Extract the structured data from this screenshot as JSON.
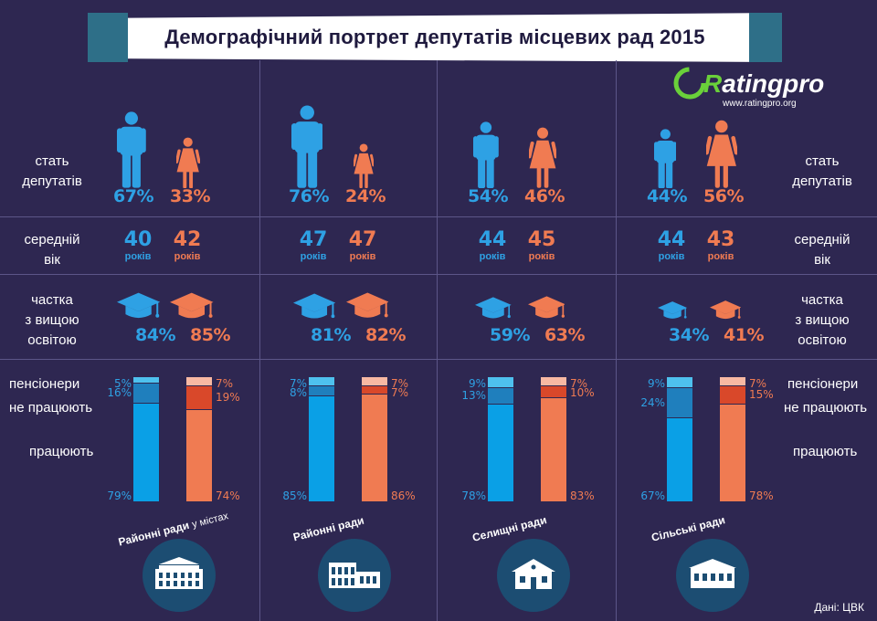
{
  "title": "Демографічний портрет депутатів місцевих рад 2015",
  "logo": {
    "brand_r": "R",
    "brand_rest": "ating",
    "brand_pro": "pro",
    "url": "www.ratingpro.org"
  },
  "row_labels": {
    "gender": "стать депутатів",
    "gender_l1": "стать",
    "gender_l2": "депутатів",
    "age_l1": "середній",
    "age_l2": "вік",
    "edu_l1": "частка",
    "edu_l2": "з вищою",
    "edu_l3": "освітою",
    "pensioners": "пенсіонери",
    "not_working": "не працюють",
    "working": "працюють"
  },
  "age_unit": "років",
  "source": "Дані: ЦВК",
  "colors": {
    "male": "#2ea1e4",
    "female": "#f07b52",
    "background": "#2e2751"
  },
  "chart_data": [
    {
      "type": "table",
      "title": "Районні ради у містах",
      "label_main": "Районні ради",
      "label_sub": "у містах",
      "gender": {
        "male": "67%",
        "female": "33%"
      },
      "age": {
        "male": "40",
        "female": "42"
      },
      "higher_education": {
        "male": "84%",
        "female": "85%"
      },
      "employment": {
        "male": {
          "pensioners": "5%",
          "not_working": "16%",
          "working": "79%"
        },
        "female": {
          "pensioners": "7%",
          "not_working": "19%",
          "working": "74%"
        }
      }
    },
    {
      "type": "table",
      "title": "Районні ради",
      "label_main": "Районні ради",
      "label_sub": "",
      "gender": {
        "male": "76%",
        "female": "24%"
      },
      "age": {
        "male": "47",
        "female": "47"
      },
      "higher_education": {
        "male": "81%",
        "female": "82%"
      },
      "employment": {
        "male": {
          "pensioners": "7%",
          "not_working": "8%",
          "working": "85%"
        },
        "female": {
          "pensioners": "7%",
          "not_working": "7%",
          "working": "86%"
        }
      }
    },
    {
      "type": "table",
      "title": "Селищні ради",
      "label_main": "Селищні ради",
      "label_sub": "",
      "gender": {
        "male": "54%",
        "female": "46%"
      },
      "age": {
        "male": "44",
        "female": "45"
      },
      "higher_education": {
        "male": "59%",
        "female": "63%"
      },
      "employment": {
        "male": {
          "pensioners": "9%",
          "not_working": "13%",
          "working": "78%"
        },
        "female": {
          "pensioners": "7%",
          "not_working": "10%",
          "working": "83%"
        }
      }
    },
    {
      "type": "table",
      "title": "Сільські ради",
      "label_main": "Сільські ради",
      "label_sub": "",
      "gender": {
        "male": "44%",
        "female": "56%"
      },
      "age": {
        "male": "44",
        "female": "43"
      },
      "higher_education": {
        "male": "34%",
        "female": "41%"
      },
      "employment": {
        "male": {
          "pensioners": "9%",
          "not_working": "24%",
          "working": "67%"
        },
        "female": {
          "pensioners": "7%",
          "not_working": "15%",
          "working": "78%"
        }
      }
    }
  ]
}
